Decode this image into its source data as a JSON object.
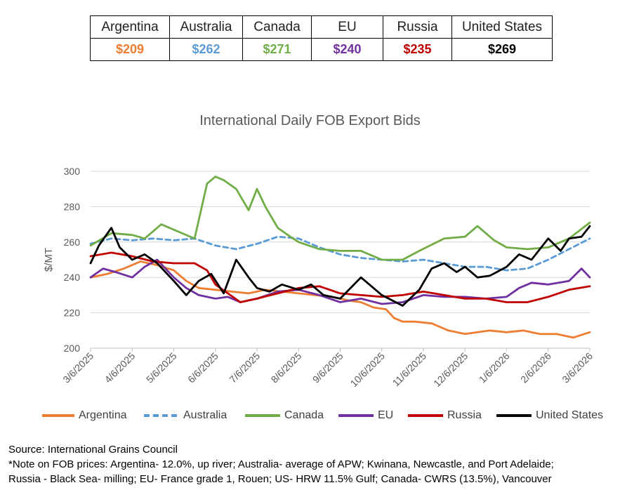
{
  "price_table": {
    "headers": [
      "Argentina",
      "Australia",
      "Canada",
      "EU",
      "Russia",
      "United States"
    ],
    "values": [
      "$209",
      "$262",
      "$271",
      "$240",
      "$235",
      "$269"
    ],
    "colors": [
      "#ed7d31",
      "#5b9bd5",
      "#70ad47",
      "#7030a0",
      "#c00000",
      "#000000"
    ]
  },
  "chart_data": {
    "type": "line",
    "title": "International Daily FOB Export Bids",
    "ylabel": "$/MT",
    "xlabel": "",
    "ylim": [
      200,
      300
    ],
    "yticks": [
      200,
      220,
      240,
      260,
      280,
      300
    ],
    "x_tick_labels": [
      "3/6/2025",
      "4/6/2025",
      "5/6/2025",
      "6/6/2025",
      "7/6/2025",
      "8/6/2025",
      "9/6/2025",
      "10/6/2025",
      "11/6/2025",
      "12/6/2025",
      "1/6/2026",
      "2/6/2026",
      "3/6/2026"
    ],
    "grid": "horizontal",
    "legend_position": "bottom",
    "x_unit": "months since 3/6/2025",
    "series": [
      {
        "name": "Argentina",
        "color": "#ed7d31",
        "style": "solid",
        "x": [
          0,
          0.4,
          0.8,
          1.2,
          1.6,
          2.0,
          2.3,
          2.6,
          3.0,
          3.4,
          3.8,
          4.2,
          4.6,
          5.0,
          5.4,
          5.8,
          6.2,
          6.5,
          6.8,
          7.1,
          7.3,
          7.5,
          7.8,
          8.2,
          8.6,
          9.0,
          9.3,
          9.6,
          10.0,
          10.4,
          10.8,
          11.2,
          11.6,
          12.0
        ],
        "values": [
          240,
          242,
          245,
          249,
          247,
          244,
          238,
          234,
          233,
          232,
          231,
          233,
          232,
          231,
          230,
          229,
          227,
          226,
          223,
          222,
          217,
          215,
          215,
          214,
          210,
          208,
          209,
          210,
          209,
          210,
          208,
          208,
          206,
          209
        ]
      },
      {
        "name": "Australia",
        "color": "#5b9bd5",
        "style": "dashed",
        "x": [
          0,
          0.5,
          1.0,
          1.5,
          2.0,
          2.5,
          3.0,
          3.5,
          4.0,
          4.5,
          5.0,
          5.5,
          6.0,
          6.5,
          7.0,
          7.5,
          8.0,
          8.5,
          9.0,
          9.5,
          10.0,
          10.5,
          11.0,
          11.5,
          12.0
        ],
        "values": [
          259,
          262,
          261,
          262,
          261,
          262,
          258,
          256,
          259,
          263,
          262,
          257,
          253,
          251,
          250,
          249,
          250,
          248,
          246,
          246,
          244,
          245,
          250,
          256,
          262
        ]
      },
      {
        "name": "Canada",
        "color": "#70ad47",
        "style": "solid",
        "x": [
          0,
          0.5,
          1.0,
          1.3,
          1.7,
          2.0,
          2.5,
          2.8,
          3.0,
          3.2,
          3.5,
          3.8,
          4.0,
          4.2,
          4.5,
          4.8,
          5.0,
          5.5,
          6.0,
          6.5,
          7.0,
          7.5,
          7.9,
          8.5,
          9.0,
          9.3,
          9.7,
          10.0,
          10.5,
          11.0,
          11.5,
          12.0
        ],
        "values": [
          258,
          265,
          264,
          262,
          270,
          267,
          262,
          293,
          297,
          295,
          290,
          278,
          290,
          280,
          268,
          263,
          260,
          256,
          255,
          255,
          250,
          250,
          255,
          262,
          263,
          269,
          261,
          257,
          256,
          257,
          262,
          271
        ]
      },
      {
        "name": "EU",
        "color": "#7030a0",
        "style": "solid",
        "x": [
          0,
          0.3,
          0.6,
          1.0,
          1.3,
          1.6,
          2.0,
          2.3,
          2.6,
          3.0,
          3.3,
          3.6,
          4.0,
          4.5,
          5.0,
          5.5,
          6.0,
          6.5,
          7.0,
          7.5,
          8.0,
          8.5,
          9.0,
          9.5,
          10.0,
          10.3,
          10.6,
          11.0,
          11.5,
          11.8,
          12.0
        ],
        "values": [
          240,
          245,
          243,
          240,
          246,
          250,
          240,
          234,
          230,
          228,
          229,
          226,
          228,
          232,
          233,
          230,
          226,
          228,
          225,
          226,
          230,
          229,
          229,
          228,
          229,
          234,
          237,
          236,
          238,
          245,
          240
        ]
      },
      {
        "name": "Russia",
        "color": "#c00000",
        "style": "solid",
        "x": [
          0,
          0.5,
          1.0,
          1.5,
          2.0,
          2.5,
          2.8,
          3.0,
          3.3,
          3.6,
          4.0,
          4.5,
          5.0,
          5.5,
          6.0,
          6.5,
          7.0,
          7.5,
          8.0,
          8.5,
          9.0,
          9.5,
          10.0,
          10.5,
          11.0,
          11.5,
          12.0
        ],
        "values": [
          252,
          254,
          252,
          249,
          248,
          248,
          244,
          236,
          231,
          226,
          228,
          231,
          234,
          235,
          231,
          230,
          229,
          230,
          232,
          230,
          228,
          228,
          226,
          226,
          229,
          233,
          235
        ]
      },
      {
        "name": "United States",
        "color": "#000000",
        "style": "solid",
        "x": [
          0,
          0.2,
          0.5,
          0.7,
          1.0,
          1.3,
          1.6,
          2.0,
          2.3,
          2.6,
          2.9,
          3.2,
          3.5,
          3.8,
          4.0,
          4.3,
          4.6,
          5.0,
          5.3,
          5.6,
          6.0,
          6.5,
          7.0,
          7.5,
          7.9,
          8.2,
          8.5,
          8.8,
          9.0,
          9.3,
          9.6,
          10.0,
          10.3,
          10.6,
          11.0,
          11.3,
          11.5,
          11.8,
          12.0
        ],
        "values": [
          248,
          258,
          268,
          257,
          250,
          253,
          248,
          238,
          230,
          238,
          242,
          231,
          250,
          240,
          234,
          232,
          236,
          233,
          236,
          230,
          228,
          240,
          230,
          224,
          233,
          245,
          248,
          243,
          246,
          240,
          241,
          246,
          253,
          250,
          262,
          255,
          262,
          263,
          269
        ]
      }
    ]
  },
  "notes": {
    "source": "Source: International Grains Council",
    "line1": "*Note on FOB prices: Argentina- 12.0%, up river; Australia- average of APW; Kwinana, Newcastle, and Port Adelaide;",
    "line2": "Russia - Black Sea- milling; EU- France grade 1, Rouen; US- HRW 11.5% Gulf; Canada- CWRS (13.5%), Vancouver"
  }
}
